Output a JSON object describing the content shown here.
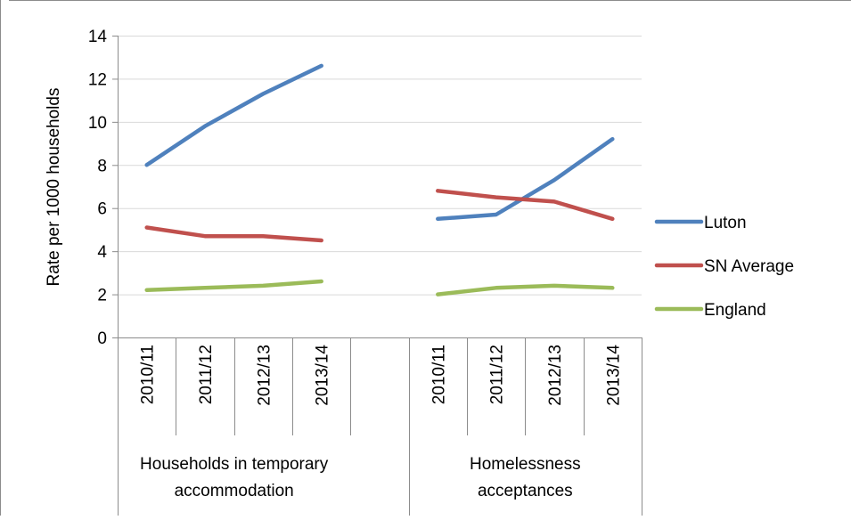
{
  "chart_data": {
    "type": "line",
    "title": "",
    "ylabel": "Rate per 1000 households",
    "ylim": [
      0,
      14
    ],
    "yticks": [
      0,
      2,
      4,
      6,
      8,
      10,
      12,
      14
    ],
    "grid": true,
    "legend_position": "right",
    "categories": [
      "2010/11",
      "2011/12",
      "2012/13",
      "2013/14",
      "2010/11",
      "2011/12",
      "2012/13",
      "2013/14"
    ],
    "groups": [
      {
        "label": "Households in temporary accommodation",
        "categories": [
          "2010/11",
          "2011/12",
          "2012/13",
          "2013/14"
        ]
      },
      {
        "label": "Homelessness acceptances",
        "categories": [
          "2010/11",
          "2011/12",
          "2012/13",
          "2013/14"
        ]
      }
    ],
    "series": [
      {
        "name": "Luton",
        "color": "#4f81bd",
        "segments": [
          [
            8.0,
            9.8,
            11.3,
            12.6
          ],
          [
            5.5,
            5.7,
            7.3,
            9.2
          ]
        ]
      },
      {
        "name": "SN Average",
        "color": "#c0504d",
        "segments": [
          [
            5.1,
            4.7,
            4.7,
            4.5
          ],
          [
            6.8,
            6.5,
            6.3,
            5.5
          ]
        ]
      },
      {
        "name": "England",
        "color": "#9bbb59",
        "segments": [
          [
            2.2,
            2.3,
            2.4,
            2.6
          ],
          [
            2.0,
            2.3,
            2.4,
            2.3
          ]
        ]
      }
    ]
  }
}
